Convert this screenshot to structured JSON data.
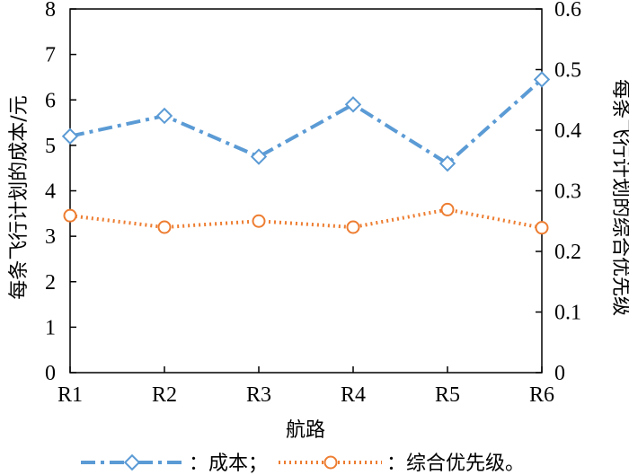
{
  "chart_data": {
    "type": "line",
    "categories": [
      "R1",
      "R2",
      "R3",
      "R4",
      "R5",
      "R6"
    ],
    "xlabel": "航路",
    "ylabel_left": "每条飞行计划的成本/元",
    "ylabel_right": "每条飞行计划的综合优先级",
    "ylim_left": [
      0,
      8
    ],
    "ylim_right": [
      0,
      0.6
    ],
    "yticks_left": [
      "0",
      "1",
      "2",
      "3",
      "4",
      "5",
      "6",
      "7",
      "8"
    ],
    "yticks_right": [
      "0",
      "0.1",
      "0.2",
      "0.3",
      "0.4",
      "0.5",
      "0.6"
    ],
    "grid": false,
    "legend_position": "bottom",
    "series": [
      {
        "name": "：成本；",
        "axis": "left",
        "marker": "diamond",
        "line_style": "dash-dot",
        "color": "#5b9bd5",
        "values": [
          5.2,
          5.65,
          4.75,
          5.9,
          4.6,
          6.45
        ]
      },
      {
        "name": "：综合优先级。",
        "axis": "right",
        "marker": "circle",
        "line_style": "dotted",
        "color": "#ed7d31",
        "values": [
          0.259,
          0.24,
          0.25,
          0.24,
          0.269,
          0.239
        ]
      }
    ]
  }
}
